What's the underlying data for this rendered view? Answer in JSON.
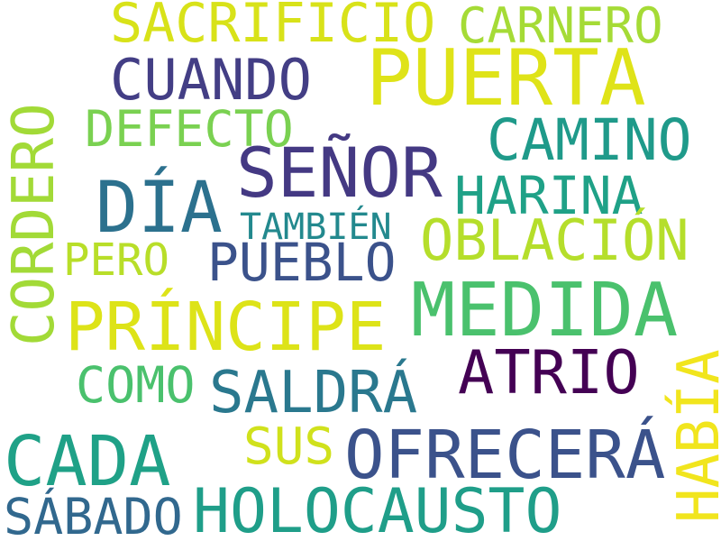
{
  "words": [
    {
      "text": "PUERTA",
      "color": "#dfe318"
    },
    {
      "text": "SACRIFICIO",
      "color": "#d8e219"
    },
    {
      "text": "CARNERO",
      "color": "#a5db36"
    },
    {
      "text": "CUANDO",
      "color": "#433e85"
    },
    {
      "text": "DEFECTO",
      "color": "#7ad151"
    },
    {
      "text": "CAMINO",
      "color": "#1f9a8a"
    },
    {
      "text": "CORDERO",
      "color": "#a2da37"
    },
    {
      "text": "SEÑOR",
      "color": "#443983"
    },
    {
      "text": "DÍA",
      "color": "#2c718e"
    },
    {
      "text": "HARINA",
      "color": "#1fa187"
    },
    {
      "text": "TAMBIÉN",
      "color": "#23898e"
    },
    {
      "text": "OBLACIÓN",
      "color": "#b5de2b"
    },
    {
      "text": "PERO",
      "color": "#b8de29"
    },
    {
      "text": "PUEBLO",
      "color": "#3b528b"
    },
    {
      "text": "MEDIDA",
      "color": "#4ac16d"
    },
    {
      "text": "PRÍNCIPE",
      "color": "#dde318"
    },
    {
      "text": "ATRIO",
      "color": "#440154"
    },
    {
      "text": "COMO",
      "color": "#4ac16d"
    },
    {
      "text": "SALDRÁ",
      "color": "#2a788e"
    },
    {
      "text": "HABÍA",
      "color": "#f1e51d"
    },
    {
      "text": "CADA",
      "color": "#1fa187"
    },
    {
      "text": "SUS",
      "color": "#d0e11c"
    },
    {
      "text": "OFRECERÁ",
      "color": "#3b528b"
    },
    {
      "text": "HOLOCAUSTO",
      "color": "#1f9e89"
    },
    {
      "text": "SÁBADO",
      "color": "#31688e"
    }
  ]
}
